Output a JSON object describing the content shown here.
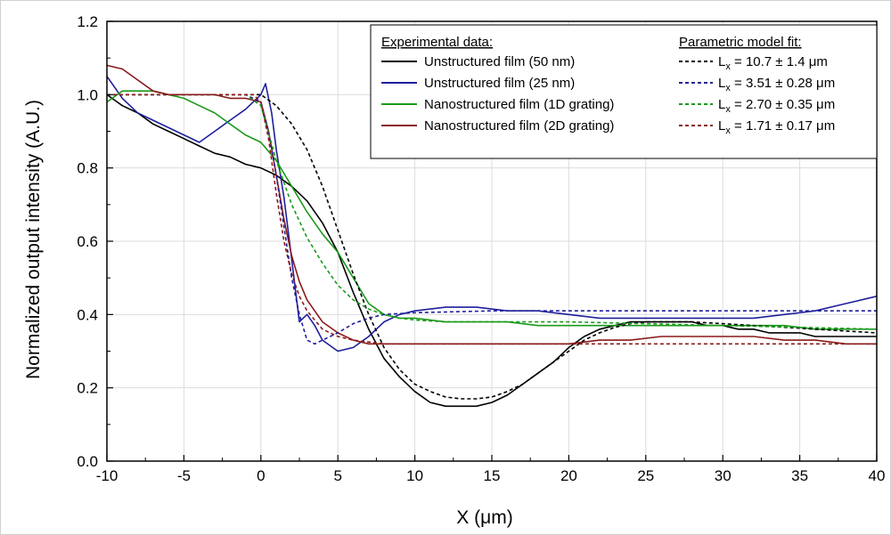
{
  "chart_data": {
    "type": "line",
    "xlabel": "X (μm)",
    "ylabel": "Normalized output intensity (A.U.)",
    "xlim": [
      -10,
      40
    ],
    "ylim": [
      0,
      1.2
    ],
    "xticks": [
      "-10",
      "-5",
      "0",
      "5",
      "10",
      "15",
      "20",
      "25",
      "30",
      "35",
      "40"
    ],
    "yticks": [
      "0.0",
      "0.2",
      "0.4",
      "0.6",
      "0.8",
      "1.0",
      "1.2"
    ],
    "grid": true,
    "legend": {
      "placement": "top-right",
      "exp_header": "Experimental data:",
      "fit_header": "Parametric model fit:"
    },
    "series": [
      {
        "name": "Unstructured film (50 nm)",
        "fit_name": "L",
        "fit_sub": "x",
        "fit_value": " = 10.7 ± 1.4 μm",
        "color": "#000000",
        "values": [
          [
            -10,
            1.0
          ],
          [
            -9,
            0.97
          ],
          [
            -8,
            0.95
          ],
          [
            -7,
            0.92
          ],
          [
            -6,
            0.9
          ],
          [
            -5,
            0.88
          ],
          [
            -4,
            0.86
          ],
          [
            -3,
            0.84
          ],
          [
            -2,
            0.83
          ],
          [
            -1,
            0.81
          ],
          [
            0,
            0.8
          ],
          [
            1,
            0.78
          ],
          [
            2,
            0.75
          ],
          [
            3,
            0.71
          ],
          [
            4,
            0.65
          ],
          [
            5,
            0.57
          ],
          [
            6,
            0.46
          ],
          [
            7,
            0.36
          ],
          [
            8,
            0.28
          ],
          [
            9,
            0.23
          ],
          [
            10,
            0.19
          ],
          [
            11,
            0.16
          ],
          [
            12,
            0.15
          ],
          [
            13,
            0.15
          ],
          [
            14,
            0.15
          ],
          [
            15,
            0.16
          ],
          [
            16,
            0.18
          ],
          [
            17,
            0.21
          ],
          [
            18,
            0.24
          ],
          [
            19,
            0.27
          ],
          [
            20,
            0.31
          ],
          [
            21,
            0.34
          ],
          [
            22,
            0.36
          ],
          [
            23,
            0.37
          ],
          [
            24,
            0.38
          ],
          [
            25,
            0.38
          ],
          [
            26,
            0.38
          ],
          [
            27,
            0.38
          ],
          [
            28,
            0.38
          ],
          [
            29,
            0.37
          ],
          [
            30,
            0.37
          ],
          [
            31,
            0.36
          ],
          [
            32,
            0.36
          ],
          [
            33,
            0.35
          ],
          [
            34,
            0.35
          ],
          [
            35,
            0.35
          ],
          [
            36,
            0.34
          ],
          [
            37,
            0.34
          ],
          [
            38,
            0.34
          ],
          [
            39,
            0.34
          ],
          [
            40,
            0.34
          ]
        ],
        "fit": [
          [
            -10,
            1.0
          ],
          [
            -2,
            1.0
          ],
          [
            0,
            1.0
          ],
          [
            1,
            0.97
          ],
          [
            2,
            0.92
          ],
          [
            3,
            0.85
          ],
          [
            4,
            0.75
          ],
          [
            5,
            0.63
          ],
          [
            6,
            0.51
          ],
          [
            7,
            0.4
          ],
          [
            8,
            0.31
          ],
          [
            9,
            0.25
          ],
          [
            10,
            0.21
          ],
          [
            11,
            0.19
          ],
          [
            12,
            0.175
          ],
          [
            13,
            0.17
          ],
          [
            14,
            0.17
          ],
          [
            15,
            0.175
          ],
          [
            16,
            0.19
          ],
          [
            17,
            0.21
          ],
          [
            18,
            0.24
          ],
          [
            19,
            0.27
          ],
          [
            20,
            0.3
          ],
          [
            21,
            0.33
          ],
          [
            22,
            0.35
          ],
          [
            23,
            0.365
          ],
          [
            24,
            0.375
          ],
          [
            25,
            0.38
          ],
          [
            26,
            0.38
          ],
          [
            28,
            0.38
          ],
          [
            30,
            0.375
          ],
          [
            32,
            0.37
          ],
          [
            34,
            0.365
          ],
          [
            36,
            0.36
          ],
          [
            38,
            0.355
          ],
          [
            40,
            0.35
          ]
        ]
      },
      {
        "name": "Unstructured film (25 nm)",
        "fit_name": "L",
        "fit_sub": "x",
        "fit_value": " = 3.51 ± 0.28 μm",
        "color": "#1f1f9c",
        "values": [
          [
            -10,
            1.05
          ],
          [
            -9,
            0.99
          ],
          [
            -8,
            0.95
          ],
          [
            -7,
            0.93
          ],
          [
            -6,
            0.91
          ],
          [
            -5,
            0.89
          ],
          [
            -4,
            0.87
          ],
          [
            -3,
            0.9
          ],
          [
            -2,
            0.93
          ],
          [
            -1,
            0.96
          ],
          [
            -0.5,
            0.98
          ],
          [
            0,
            1.0
          ],
          [
            0.3,
            1.03
          ],
          [
            0.7,
            0.95
          ],
          [
            1,
            0.85
          ],
          [
            1.5,
            0.72
          ],
          [
            2,
            0.55
          ],
          [
            2.5,
            0.38
          ],
          [
            3,
            0.4
          ],
          [
            3.5,
            0.37
          ],
          [
            4,
            0.33
          ],
          [
            5,
            0.3
          ],
          [
            6,
            0.31
          ],
          [
            7,
            0.34
          ],
          [
            8,
            0.38
          ],
          [
            9,
            0.4
          ],
          [
            10,
            0.41
          ],
          [
            12,
            0.42
          ],
          [
            14,
            0.42
          ],
          [
            16,
            0.41
          ],
          [
            18,
            0.41
          ],
          [
            20,
            0.4
          ],
          [
            22,
            0.39
          ],
          [
            24,
            0.39
          ],
          [
            26,
            0.39
          ],
          [
            28,
            0.39
          ],
          [
            30,
            0.39
          ],
          [
            32,
            0.39
          ],
          [
            34,
            0.4
          ],
          [
            36,
            0.41
          ],
          [
            38,
            0.43
          ],
          [
            40,
            0.45
          ]
        ],
        "fit": [
          [
            -10,
            1.0
          ],
          [
            -1,
            1.0
          ],
          [
            0,
            0.98
          ],
          [
            0.5,
            0.9
          ],
          [
            1,
            0.78
          ],
          [
            1.5,
            0.64
          ],
          [
            2,
            0.5
          ],
          [
            2.5,
            0.4
          ],
          [
            3,
            0.33
          ],
          [
            3.5,
            0.32
          ],
          [
            4,
            0.33
          ],
          [
            5,
            0.35
          ],
          [
            6,
            0.375
          ],
          [
            7,
            0.39
          ],
          [
            8,
            0.4
          ],
          [
            10,
            0.405
          ],
          [
            15,
            0.41
          ],
          [
            20,
            0.41
          ],
          [
            25,
            0.41
          ],
          [
            30,
            0.41
          ],
          [
            35,
            0.41
          ],
          [
            40,
            0.41
          ]
        ]
      },
      {
        "name": "Nanostructured film (1D grating)",
        "fit_name": "L",
        "fit_sub": "x",
        "fit_value": " = 2.70 ± 0.35 μm",
        "color": "#1a9a1a",
        "values": [
          [
            -10,
            0.98
          ],
          [
            -9,
            1.01
          ],
          [
            -8,
            1.01
          ],
          [
            -7,
            1.01
          ],
          [
            -6,
            1.0
          ],
          [
            -5,
            0.99
          ],
          [
            -4,
            0.97
          ],
          [
            -3,
            0.95
          ],
          [
            -2,
            0.92
          ],
          [
            -1,
            0.89
          ],
          [
            0,
            0.87
          ],
          [
            1,
            0.82
          ],
          [
            2,
            0.75
          ],
          [
            3,
            0.68
          ],
          [
            4,
            0.62
          ],
          [
            5,
            0.57
          ],
          [
            6,
            0.5
          ],
          [
            7,
            0.43
          ],
          [
            8,
            0.4
          ],
          [
            9,
            0.39
          ],
          [
            10,
            0.39
          ],
          [
            12,
            0.38
          ],
          [
            14,
            0.38
          ],
          [
            16,
            0.38
          ],
          [
            18,
            0.37
          ],
          [
            20,
            0.37
          ],
          [
            22,
            0.37
          ],
          [
            24,
            0.37
          ],
          [
            26,
            0.37
          ],
          [
            28,
            0.37
          ],
          [
            30,
            0.37
          ],
          [
            32,
            0.37
          ],
          [
            34,
            0.37
          ],
          [
            36,
            0.36
          ],
          [
            38,
            0.36
          ],
          [
            40,
            0.36
          ]
        ],
        "fit": [
          [
            -10,
            1.0
          ],
          [
            -1,
            1.0
          ],
          [
            0,
            0.97
          ],
          [
            1,
            0.82
          ],
          [
            2,
            0.7
          ],
          [
            3,
            0.61
          ],
          [
            4,
            0.54
          ],
          [
            5,
            0.48
          ],
          [
            6,
            0.44
          ],
          [
            7,
            0.415
          ],
          [
            8,
            0.4
          ],
          [
            9,
            0.39
          ],
          [
            10,
            0.385
          ],
          [
            12,
            0.38
          ],
          [
            15,
            0.38
          ],
          [
            20,
            0.38
          ],
          [
            25,
            0.375
          ],
          [
            30,
            0.37
          ],
          [
            35,
            0.365
          ],
          [
            40,
            0.36
          ]
        ]
      },
      {
        "name": "Nanostructured film (2D grating)",
        "fit_name": "L",
        "fit_sub": "x",
        "fit_value": " = 1.71 ± 0.17 μm",
        "color": "#8b1a1a",
        "values": [
          [
            -10,
            1.08
          ],
          [
            -9,
            1.07
          ],
          [
            -8,
            1.04
          ],
          [
            -7,
            1.01
          ],
          [
            -6,
            1.0
          ],
          [
            -5,
            1.0
          ],
          [
            -4,
            1.0
          ],
          [
            -3,
            1.0
          ],
          [
            -2,
            0.99
          ],
          [
            -1,
            0.99
          ],
          [
            0,
            0.98
          ],
          [
            0.5,
            0.9
          ],
          [
            1,
            0.78
          ],
          [
            1.5,
            0.66
          ],
          [
            2,
            0.56
          ],
          [
            2.5,
            0.49
          ],
          [
            3,
            0.44
          ],
          [
            4,
            0.38
          ],
          [
            5,
            0.35
          ],
          [
            6,
            0.33
          ],
          [
            7,
            0.32
          ],
          [
            8,
            0.32
          ],
          [
            10,
            0.32
          ],
          [
            12,
            0.32
          ],
          [
            14,
            0.32
          ],
          [
            16,
            0.32
          ],
          [
            18,
            0.32
          ],
          [
            20,
            0.32
          ],
          [
            22,
            0.33
          ],
          [
            24,
            0.33
          ],
          [
            26,
            0.34
          ],
          [
            28,
            0.34
          ],
          [
            30,
            0.34
          ],
          [
            32,
            0.34
          ],
          [
            34,
            0.33
          ],
          [
            36,
            0.33
          ],
          [
            38,
            0.32
          ],
          [
            40,
            0.32
          ]
        ],
        "fit": [
          [
            -10,
            1.0
          ],
          [
            -0.5,
            1.0
          ],
          [
            0,
            0.98
          ],
          [
            0.5,
            0.88
          ],
          [
            1,
            0.73
          ],
          [
            1.5,
            0.6
          ],
          [
            2,
            0.51
          ],
          [
            2.5,
            0.45
          ],
          [
            3,
            0.41
          ],
          [
            4,
            0.36
          ],
          [
            5,
            0.34
          ],
          [
            6,
            0.33
          ],
          [
            7,
            0.325
          ],
          [
            8,
            0.32
          ],
          [
            10,
            0.32
          ],
          [
            15,
            0.32
          ],
          [
            20,
            0.32
          ],
          [
            25,
            0.32
          ],
          [
            30,
            0.32
          ],
          [
            35,
            0.32
          ],
          [
            40,
            0.32
          ]
        ]
      }
    ]
  }
}
